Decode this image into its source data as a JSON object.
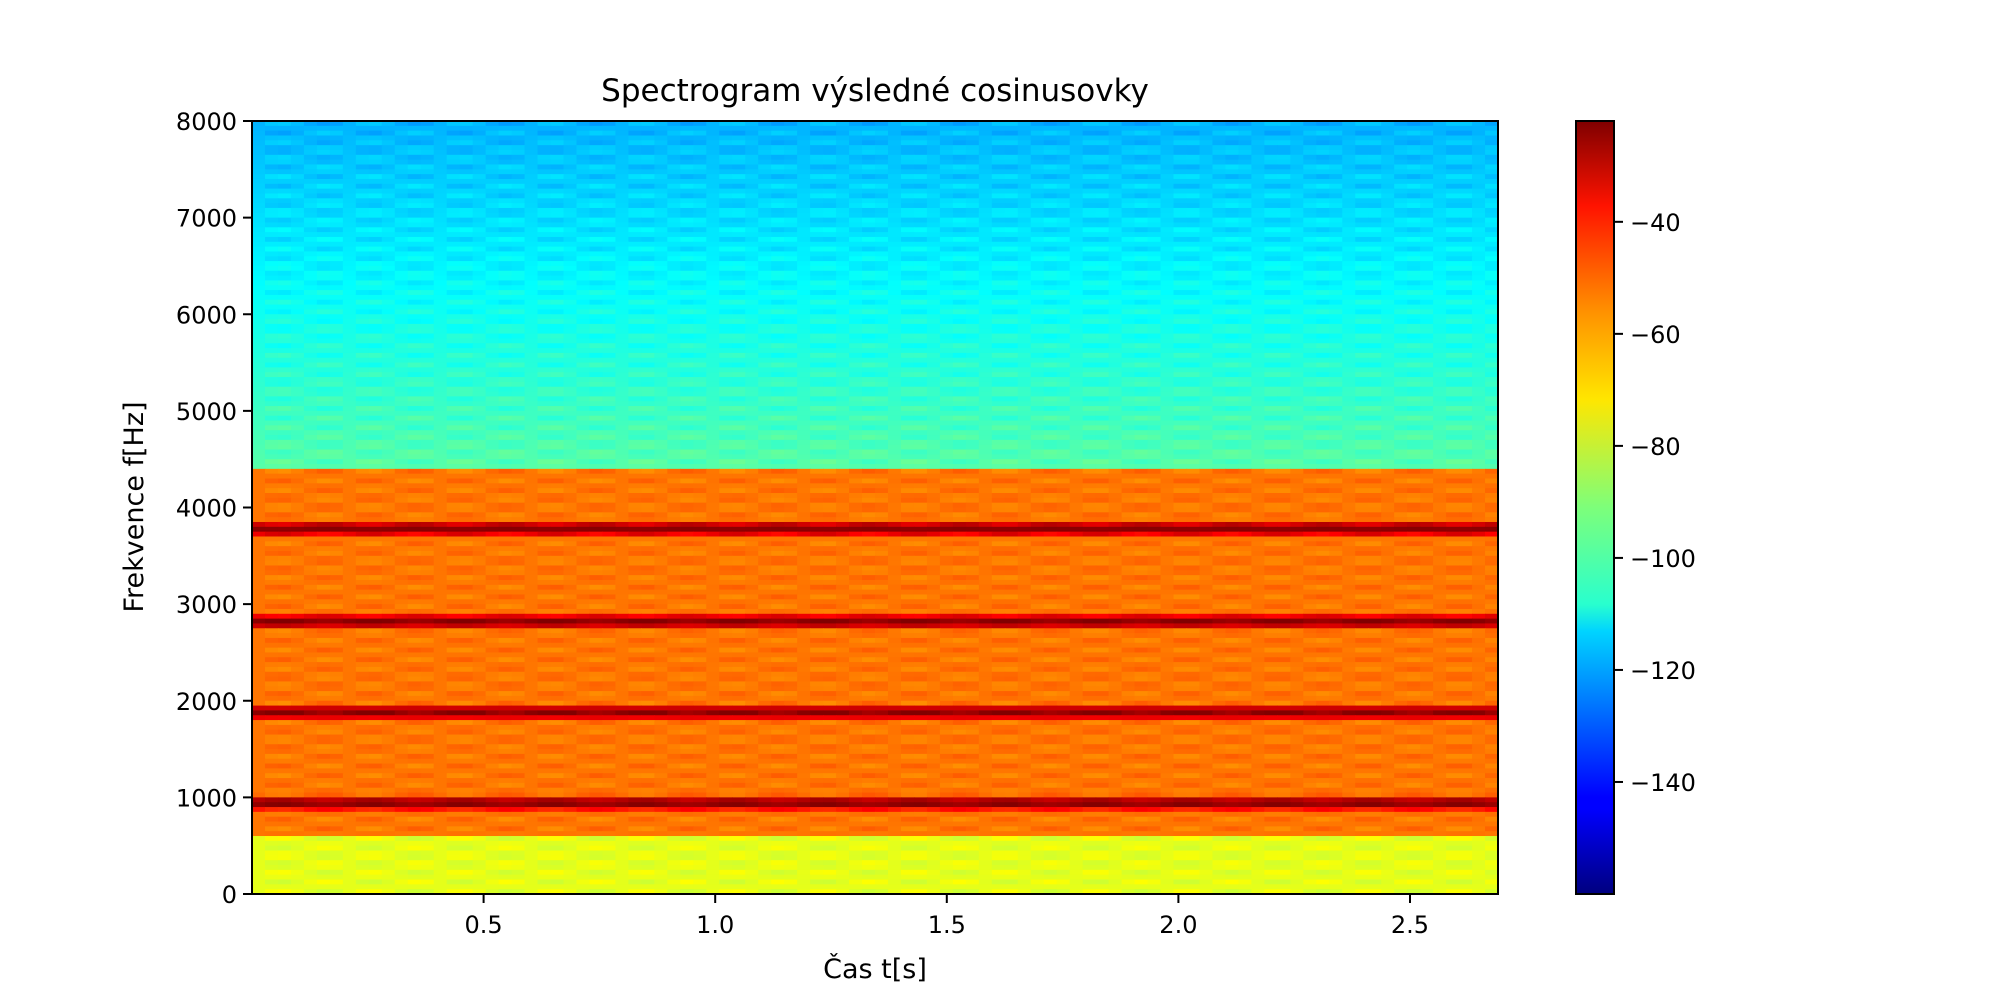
{
  "chart_data": {
    "type": "heatmap",
    "title": "Spectrogram výsledné cosinusovky",
    "xlabel": "Čas t[s]",
    "ylabel": "Frekvence f[Hz]",
    "xlim": [
      0.0,
      2.69
    ],
    "ylim": [
      0,
      8000
    ],
    "x_ticks": [
      0.5,
      1.0,
      1.5,
      2.0,
      2.5
    ],
    "x_tick_labels": [
      "0.5",
      "1.0",
      "1.5",
      "2.0",
      "2.5"
    ],
    "y_ticks": [
      0,
      1000,
      2000,
      3000,
      4000,
      5000,
      6000,
      7000,
      8000
    ],
    "y_tick_labels": [
      "0",
      "1000",
      "2000",
      "3000",
      "4000",
      "5000",
      "6000",
      "7000",
      "8000"
    ],
    "colormap": "jet",
    "color_range_db": [
      -160,
      -22
    ],
    "colorbar_ticks": [
      -40,
      -60,
      -80,
      -100,
      -120,
      -140
    ],
    "colorbar_tick_labels": [
      "−40",
      "−60",
      "−80",
      "−100",
      "−120",
      "−140"
    ],
    "spectral_peaks_hz": [
      940,
      1880,
      2820,
      3780
    ],
    "grid": false
  }
}
